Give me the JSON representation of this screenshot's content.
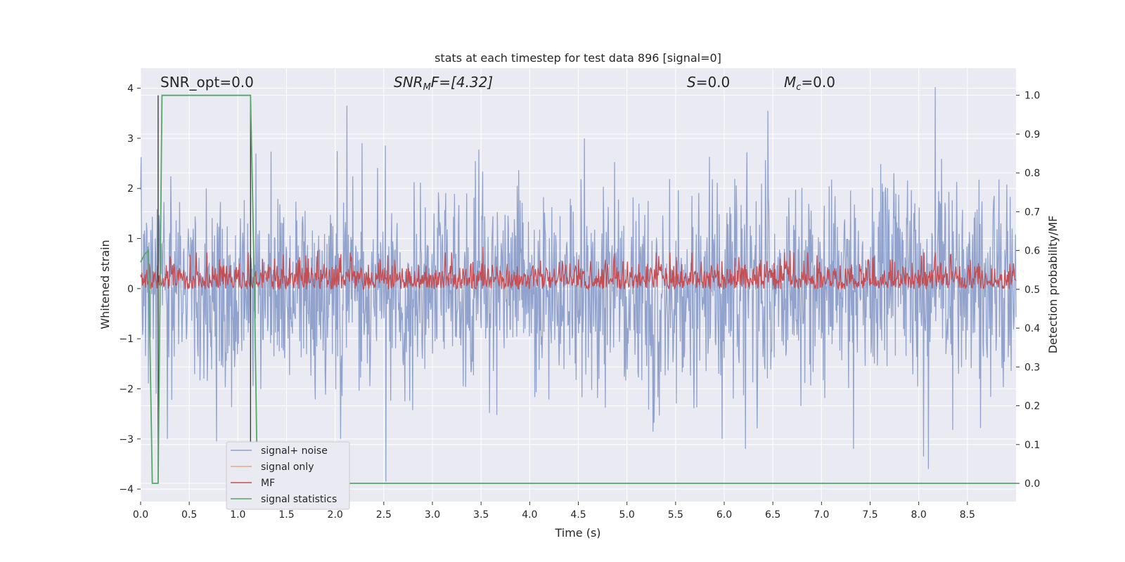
{
  "chart_data": {
    "type": "line",
    "title": "stats at each timestep for test data 896 [signal=0]",
    "xlabel": "Time (s)",
    "ylabel": "Whitened strain",
    "y2label": "Detection probability/MF",
    "xlim": [
      0.0,
      9.0
    ],
    "ylim": [
      -4.25,
      4.4
    ],
    "y2lim": [
      -0.047,
      1.07
    ],
    "grid": true,
    "legend_position": "lower-left",
    "xticks": [
      "0.0",
      "0.5",
      "1.0",
      "1.5",
      "2.0",
      "2.5",
      "3.0",
      "3.5",
      "4.0",
      "4.5",
      "5.0",
      "5.5",
      "6.0",
      "6.5",
      "7.0",
      "7.5",
      "8.0",
      "8.5"
    ],
    "yticks": [
      "4",
      "3",
      "2",
      "1",
      "0",
      "−1",
      "−2",
      "−3",
      "−4"
    ],
    "y2ticks": [
      "1.0",
      "0.9",
      "0.8",
      "0.7",
      "0.6",
      "0.5",
      "0.4",
      "0.3",
      "0.2",
      "0.1",
      "0.0"
    ],
    "annotations": {
      "snr_opt": "SNR_opt=0.0",
      "snr_mf_sym": "SNR",
      "snr_mf_sub": "M",
      "snr_mf_rest": "F=[4.32]",
      "s_sym": "S",
      "s_rest": "=0.0",
      "mc_sym": "M",
      "mc_sub": "c",
      "mc_rest": "=0.0"
    },
    "series": [
      {
        "name": "signal+ noise",
        "color": "#8c9fca",
        "axis": "left",
        "description_sampled": "whitened strain noise, approx. gaussian sigma~1, sampled envelope",
        "x_range": [
          0.0,
          9.0
        ],
        "sample_count": 1800,
        "extrema": [
          [
            2.12,
            3.65
          ],
          [
            6.45,
            3.55
          ],
          [
            8.17,
            4.02
          ],
          [
            2.52,
            -3.85
          ],
          [
            8.05,
            -3.35
          ],
          [
            8.1,
            -3.6
          ],
          [
            6.22,
            -3.2
          ],
          [
            7.33,
            -3.2
          ],
          [
            0.78,
            -3.05
          ]
        ]
      },
      {
        "name": "signal only",
        "color": "#e8a48a",
        "axis": "left",
        "values_note": "flat at 0"
      },
      {
        "name": "MF",
        "color": "#c44e52",
        "axis": "right",
        "baseline": 0.5,
        "range": [
          0.5,
          0.6
        ],
        "peaks": [
          [
            1.82,
            0.6
          ],
          [
            3.52,
            0.61
          ],
          [
            6.68,
            0.6
          ]
        ]
      },
      {
        "name": "signal statistics",
        "color": "#55a868",
        "axis": "right",
        "x": [
          0.0,
          0.04,
          0.08,
          0.12,
          0.18,
          0.22,
          0.26,
          1.08,
          1.13,
          1.17,
          1.2,
          9.0
        ],
        "y": [
          0.57,
          0.59,
          0.6,
          0.0,
          0.0,
          1.0,
          1.0,
          1.0,
          1.0,
          0.5,
          0.0,
          0.0
        ]
      }
    ],
    "vertical_lines": [
      {
        "x": 0.18,
        "color": "#333333"
      },
      {
        "x": 1.13,
        "color": "#333333"
      }
    ],
    "legend": [
      "signal+ noise",
      "signal only",
      "MF",
      "signal statistics"
    ]
  }
}
